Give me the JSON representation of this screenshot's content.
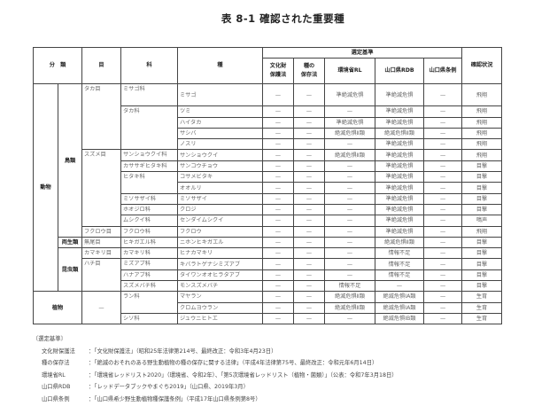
{
  "title": "表 8-1  確認された重要種",
  "header": {
    "bunrui": "分　類",
    "moku": "目",
    "ka": "科",
    "shu": "種",
    "criteria": "選定基準",
    "bunkazai": [
      "文化財",
      "保護法"
    ],
    "shunohozon": [
      "種の",
      "保存法"
    ],
    "rl": "環境省RL",
    "rdb": "山口県RDB",
    "jorei": "山口県条例",
    "status": "確認状況"
  },
  "groups": {
    "animal": "動物",
    "bird": "鳥類",
    "amphibian": "両生類",
    "insect": "昆虫類",
    "plant": "植物",
    "plant_order": "—"
  },
  "orders": [
    {
      "name": "タカ目",
      "span": 5
    },
    {
      "name": "スズメ目",
      "span": 7
    },
    {
      "name": "フクロウ目",
      "span": 1
    },
    {
      "name": "無尾目",
      "span": 1
    },
    {
      "name": "カマキリ目",
      "span": 1
    },
    {
      "name": "ハチ目",
      "span": 3
    }
  ],
  "families": [
    {
      "name": "ミサゴ科",
      "span": 1
    },
    {
      "name": "タカ科",
      "span": 4
    },
    {
      "name": "サンショウクイ科",
      "span": 1
    },
    {
      "name": "カササギヒタキ科",
      "span": 1
    },
    {
      "name": "ヒタキ科",
      "span": 2
    },
    {
      "name": "ミソサザイ科",
      "span": 1
    },
    {
      "name": "ホオジロ科",
      "span": 1
    },
    {
      "name": "ムシクイ科",
      "span": 1
    },
    {
      "name": "フクロウ科",
      "span": 1
    },
    {
      "name": "ヒキガエル科",
      "span": 1
    },
    {
      "name": "カマキリ科",
      "span": 1
    },
    {
      "name": "ミズアブ科",
      "span": 1
    },
    {
      "name": "ハナアブ科",
      "span": 1
    },
    {
      "name": "スズメバチ科",
      "span": 1
    },
    {
      "name": "ラン科",
      "span": 2
    },
    {
      "name": "シソ科",
      "span": 1
    }
  ],
  "species": [
    {
      "name": "ミサゴ",
      "bunkazai": "—",
      "hozon": "—",
      "rl": "準絶滅危惧",
      "rdb": "準絶滅危惧",
      "jorei": "—",
      "status": "飛翔"
    },
    {
      "name": "ツミ",
      "bunkazai": "—",
      "hozon": "—",
      "rl": "—",
      "rdb": "準絶滅危惧",
      "jorei": "—",
      "status": "飛翔"
    },
    {
      "name": "ハイタカ",
      "bunkazai": "—",
      "hozon": "—",
      "rl": "準絶滅危惧",
      "rdb": "準絶滅危惧",
      "jorei": "—",
      "status": "飛翔"
    },
    {
      "name": "サシバ",
      "bunkazai": "—",
      "hozon": "—",
      "rl": "絶滅危惧Ⅱ類",
      "rdb": "絶滅危惧Ⅱ類",
      "jorei": "—",
      "status": "飛翔"
    },
    {
      "name": "ノスリ",
      "bunkazai": "—",
      "hozon": "—",
      "rl": "—",
      "rdb": "準絶滅危惧",
      "jorei": "—",
      "status": "飛翔"
    },
    {
      "name": "サンショウクイ",
      "bunkazai": "—",
      "hozon": "—",
      "rl": "絶滅危惧Ⅱ類",
      "rdb": "準絶滅危惧",
      "jorei": "—",
      "status": "飛翔"
    },
    {
      "name": "サンコウチョウ",
      "bunkazai": "—",
      "hozon": "—",
      "rl": "—",
      "rdb": "準絶滅危惧",
      "jorei": "—",
      "status": "目撃"
    },
    {
      "name": "コサメビタキ",
      "bunkazai": "—",
      "hozon": "—",
      "rl": "—",
      "rdb": "準絶滅危惧",
      "jorei": "—",
      "status": "目撃"
    },
    {
      "name": "オオルリ",
      "bunkazai": "—",
      "hozon": "—",
      "rl": "—",
      "rdb": "準絶滅危惧",
      "jorei": "—",
      "status": "目撃"
    },
    {
      "name": "ミソサザイ",
      "bunkazai": "—",
      "hozon": "—",
      "rl": "—",
      "rdb": "準絶滅危惧",
      "jorei": "—",
      "status": "目撃"
    },
    {
      "name": "クロジ",
      "bunkazai": "—",
      "hozon": "—",
      "rl": "—",
      "rdb": "準絶滅危惧",
      "jorei": "—",
      "status": "目撃"
    },
    {
      "name": "センダイムシクイ",
      "bunkazai": "—",
      "hozon": "—",
      "rl": "—",
      "rdb": "準絶滅危惧",
      "jorei": "—",
      "status": "鳴声"
    },
    {
      "name": "フクロウ",
      "bunkazai": "—",
      "hozon": "—",
      "rl": "—",
      "rdb": "準絶滅危惧",
      "jorei": "—",
      "status": "飛翔"
    },
    {
      "name": "ニホンヒキガエル",
      "bunkazai": "—",
      "hozon": "—",
      "rl": "—",
      "rdb": "絶滅危惧Ⅱ類",
      "jorei": "—",
      "status": "目撃"
    },
    {
      "name": "ヒナカマキリ",
      "bunkazai": "—",
      "hozon": "—",
      "rl": "—",
      "rdb": "情報不足",
      "jorei": "—",
      "status": "目撃"
    },
    {
      "name": "キバラトゲナシミズアブ",
      "bunkazai": "—",
      "hozon": "—",
      "rl": "—",
      "rdb": "情報不足",
      "jorei": "—",
      "status": "目撃"
    },
    {
      "name": "タイワンオオヒラタアブ",
      "bunkazai": "—",
      "hozon": "—",
      "rl": "—",
      "rdb": "情報不足",
      "jorei": "—",
      "status": "目撃"
    },
    {
      "name": "モンスズメバチ",
      "bunkazai": "—",
      "hozon": "—",
      "rl": "情報不足",
      "rdb": "—",
      "jorei": "—",
      "status": "目撃"
    },
    {
      "name": "マヤラン",
      "bunkazai": "—",
      "hozon": "—",
      "rl": "絶滅危惧Ⅱ類",
      "rdb": "絶滅危惧ⅠA類",
      "jorei": "—",
      "status": "生育"
    },
    {
      "name": "クロムヨウラン",
      "bunkazai": "—",
      "hozon": "—",
      "rl": "絶滅危惧Ⅱ類",
      "rdb": "絶滅危惧ⅠA類",
      "jorei": "—",
      "status": "生育"
    },
    {
      "name": "ジュウニヒトエ",
      "bunkazai": "—",
      "hozon": "—",
      "rl": "—",
      "rdb": "絶滅危惧ⅠB類",
      "jorei": "—",
      "status": "生育"
    }
  ],
  "notes": {
    "heading": "〔選定基準〕",
    "items": [
      {
        "label": "文化財保護法",
        "text": "：「文化財保護法」（昭和25年法律第214号、最終改正：令和3年4月23日）"
      },
      {
        "label": "種の保存法",
        "text": "：「絶滅のおそれのある野生動植物の種の保存に関する法律」（平成4年法律第75号、最終改正：令和元年6月14日）"
      },
      {
        "label": "環境省RL",
        "text": "：「環境省レッドリスト2020」（環境省、令和2年）、「第5次環境省レッドリスト（植物・菌類）」（公表：令和7年3月18日）"
      },
      {
        "label": "山口県RDB",
        "text": "：「レッドデータブックやまぐち2019」（山口県、2019年3月）"
      },
      {
        "label": "山口県条例",
        "text": "：「山口県希少野生動植物種保護条例」（平成17年山口県条例第8号）"
      }
    ]
  }
}
